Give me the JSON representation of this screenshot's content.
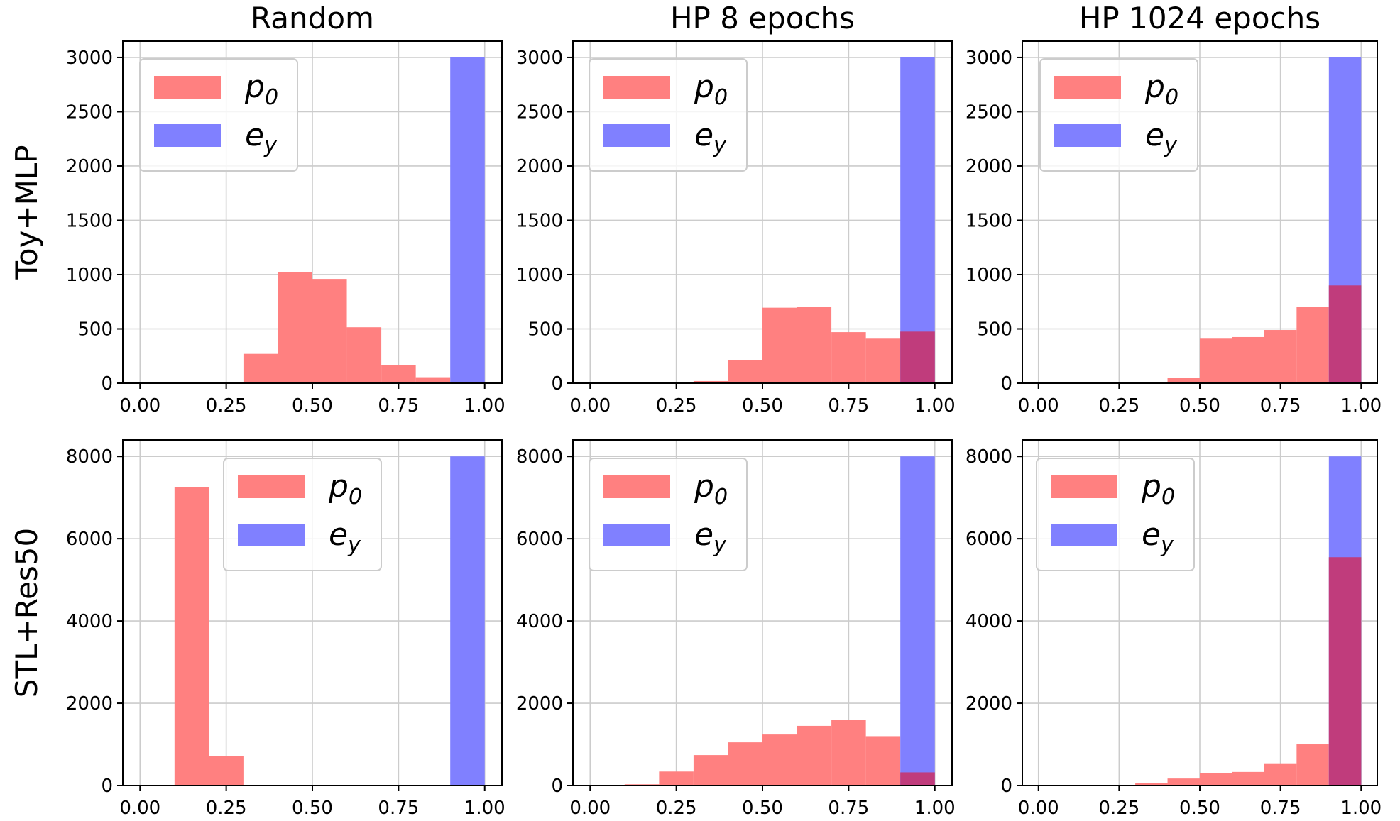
{
  "colors": {
    "p0": "#ff8080",
    "ey": "#8080ff",
    "overlap": "#c03c7c",
    "grid": "#cccccc",
    "frame": "#000000"
  },
  "chart_data": [
    {
      "type": "bar",
      "title": "Random",
      "ylabel": "Toy+MLP",
      "xlabel": "",
      "xlim": [
        -0.05,
        1.05
      ],
      "ylim": [
        0,
        3150
      ],
      "xticks": [
        0.0,
        0.25,
        0.5,
        0.75,
        1.0
      ],
      "xtick_labels": [
        "0.00",
        "0.25",
        "0.50",
        "0.75",
        "1.00"
      ],
      "yticks": [
        0,
        500,
        1000,
        1500,
        2000,
        2500,
        3000
      ],
      "ytick_labels": [
        "0",
        "500",
        "1000",
        "1500",
        "2000",
        "2500",
        "3000"
      ],
      "bin_edges": [
        0.0,
        0.1,
        0.2,
        0.3,
        0.4,
        0.5,
        0.6,
        0.7,
        0.8,
        0.9,
        1.0
      ],
      "legend": {
        "placement": "upper left",
        "entries": [
          {
            "base": "p",
            "sub": "0",
            "key": "p0"
          },
          {
            "base": "e",
            "sub": "y",
            "key": "ey"
          }
        ]
      },
      "series": [
        {
          "name": "p0",
          "values": [
            0,
            0,
            0,
            270,
            1020,
            960,
            515,
            165,
            55,
            0
          ]
        },
        {
          "name": "ey",
          "values": [
            0,
            0,
            0,
            0,
            0,
            0,
            0,
            0,
            0,
            3000
          ]
        }
      ]
    },
    {
      "type": "bar",
      "title": "HP 8 epochs",
      "ylabel": "",
      "xlabel": "",
      "xlim": [
        -0.05,
        1.05
      ],
      "ylim": [
        0,
        3150
      ],
      "xticks": [
        0.0,
        0.25,
        0.5,
        0.75,
        1.0
      ],
      "xtick_labels": [
        "0.00",
        "0.25",
        "0.50",
        "0.75",
        "1.00"
      ],
      "yticks": [
        0,
        500,
        1000,
        1500,
        2000,
        2500,
        3000
      ],
      "ytick_labels": [
        "0",
        "500",
        "1000",
        "1500",
        "2000",
        "2500",
        "3000"
      ],
      "bin_edges": [
        0.0,
        0.1,
        0.2,
        0.3,
        0.4,
        0.5,
        0.6,
        0.7,
        0.8,
        0.9,
        1.0
      ],
      "legend": {
        "placement": "upper left",
        "entries": [
          {
            "base": "p",
            "sub": "0",
            "key": "p0"
          },
          {
            "base": "e",
            "sub": "y",
            "key": "ey"
          }
        ]
      },
      "series": [
        {
          "name": "p0",
          "values": [
            0,
            0,
            0,
            20,
            210,
            695,
            705,
            470,
            410,
            475
          ]
        },
        {
          "name": "ey",
          "values": [
            0,
            0,
            0,
            0,
            0,
            0,
            0,
            0,
            0,
            3000
          ]
        }
      ]
    },
    {
      "type": "bar",
      "title": "HP 1024 epochs",
      "ylabel": "",
      "xlabel": "",
      "xlim": [
        -0.05,
        1.05
      ],
      "ylim": [
        0,
        3150
      ],
      "xticks": [
        0.0,
        0.25,
        0.5,
        0.75,
        1.0
      ],
      "xtick_labels": [
        "0.00",
        "0.25",
        "0.50",
        "0.75",
        "1.00"
      ],
      "yticks": [
        0,
        500,
        1000,
        1500,
        2000,
        2500,
        3000
      ],
      "ytick_labels": [
        "0",
        "500",
        "1000",
        "1500",
        "2000",
        "2500",
        "3000"
      ],
      "bin_edges": [
        0.0,
        0.1,
        0.2,
        0.3,
        0.4,
        0.5,
        0.6,
        0.7,
        0.8,
        0.9,
        1.0
      ],
      "legend": {
        "placement": "upper left",
        "entries": [
          {
            "base": "p",
            "sub": "0",
            "key": "p0"
          },
          {
            "base": "e",
            "sub": "y",
            "key": "ey"
          }
        ]
      },
      "series": [
        {
          "name": "p0",
          "values": [
            0,
            0,
            0,
            0,
            50,
            410,
            425,
            490,
            705,
            900
          ]
        },
        {
          "name": "ey",
          "values": [
            0,
            0,
            0,
            0,
            0,
            0,
            0,
            0,
            0,
            3000
          ]
        }
      ]
    },
    {
      "type": "bar",
      "title": "",
      "ylabel": "STL+Res50",
      "xlabel": "",
      "xlim": [
        -0.05,
        1.05
      ],
      "ylim": [
        0,
        8400
      ],
      "xticks": [
        0.0,
        0.25,
        0.5,
        0.75,
        1.0
      ],
      "xtick_labels": [
        "0.00",
        "0.25",
        "0.50",
        "0.75",
        "1.00"
      ],
      "yticks": [
        0,
        2000,
        4000,
        6000,
        8000
      ],
      "ytick_labels": [
        "0",
        "2000",
        "4000",
        "6000",
        "8000"
      ],
      "bin_edges": [
        0.0,
        0.1,
        0.2,
        0.3,
        0.4,
        0.5,
        0.6,
        0.7,
        0.8,
        0.9,
        1.0
      ],
      "legend": {
        "placement": "upper center",
        "entries": [
          {
            "base": "p",
            "sub": "0",
            "key": "p0"
          },
          {
            "base": "e",
            "sub": "y",
            "key": "ey"
          }
        ]
      },
      "series": [
        {
          "name": "p0",
          "values": [
            0,
            7250,
            720,
            0,
            0,
            0,
            0,
            0,
            0,
            0
          ]
        },
        {
          "name": "ey",
          "values": [
            0,
            0,
            0,
            0,
            0,
            0,
            0,
            0,
            0,
            8000
          ]
        }
      ]
    },
    {
      "type": "bar",
      "title": "",
      "ylabel": "",
      "xlabel": "",
      "xlim": [
        -0.05,
        1.05
      ],
      "ylim": [
        0,
        8400
      ],
      "xticks": [
        0.0,
        0.25,
        0.5,
        0.75,
        1.0
      ],
      "xtick_labels": [
        "0.00",
        "0.25",
        "0.50",
        "0.75",
        "1.00"
      ],
      "yticks": [
        0,
        2000,
        4000,
        6000,
        8000
      ],
      "ytick_labels": [
        "0",
        "2000",
        "4000",
        "6000",
        "8000"
      ],
      "bin_edges": [
        0.0,
        0.1,
        0.2,
        0.3,
        0.4,
        0.5,
        0.6,
        0.7,
        0.8,
        0.9,
        1.0
      ],
      "legend": {
        "placement": "upper left",
        "entries": [
          {
            "base": "p",
            "sub": "0",
            "key": "p0"
          },
          {
            "base": "e",
            "sub": "y",
            "key": "ey"
          }
        ]
      },
      "series": [
        {
          "name": "p0",
          "values": [
            0,
            30,
            340,
            740,
            1050,
            1240,
            1450,
            1600,
            1200,
            320
          ]
        },
        {
          "name": "ey",
          "values": [
            0,
            0,
            0,
            0,
            0,
            0,
            0,
            0,
            0,
            8000
          ]
        }
      ]
    },
    {
      "type": "bar",
      "title": "",
      "ylabel": "",
      "xlabel": "",
      "xlim": [
        -0.05,
        1.05
      ],
      "ylim": [
        0,
        8400
      ],
      "xticks": [
        0.0,
        0.25,
        0.5,
        0.75,
        1.0
      ],
      "xtick_labels": [
        "0.00",
        "0.25",
        "0.50",
        "0.75",
        "1.00"
      ],
      "yticks": [
        0,
        2000,
        4000,
        6000,
        8000
      ],
      "ytick_labels": [
        "0",
        "2000",
        "4000",
        "6000",
        "8000"
      ],
      "bin_edges": [
        0.0,
        0.1,
        0.2,
        0.3,
        0.4,
        0.5,
        0.6,
        0.7,
        0.8,
        0.9,
        1.0
      ],
      "legend": {
        "placement": "upper left",
        "entries": [
          {
            "base": "p",
            "sub": "0",
            "key": "p0"
          },
          {
            "base": "e",
            "sub": "y",
            "key": "ey"
          }
        ]
      },
      "series": [
        {
          "name": "p0",
          "values": [
            0,
            0,
            0,
            60,
            170,
            300,
            330,
            540,
            1000,
            5550
          ]
        },
        {
          "name": "ey",
          "values": [
            0,
            0,
            0,
            0,
            0,
            0,
            0,
            0,
            0,
            8000
          ]
        }
      ]
    }
  ]
}
